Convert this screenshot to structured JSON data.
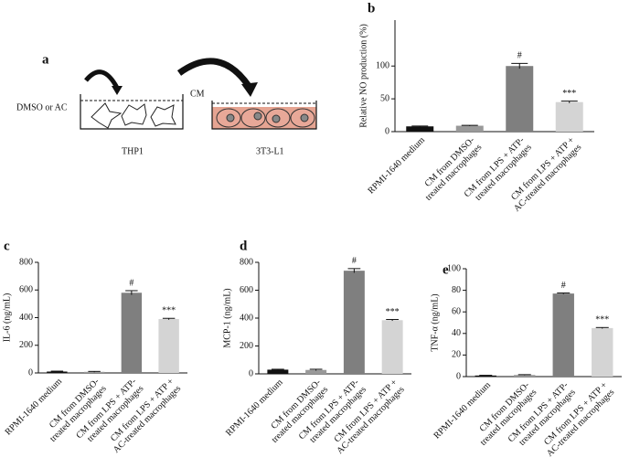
{
  "diagram": {
    "label": "a",
    "treatment": "DMSO or AC",
    "transfer": "CM",
    "source_cells": "THP1",
    "target_cells": "3T3-L1"
  },
  "chart_data": [
    {
      "type": "bar",
      "panel": "b",
      "ylabel": "Relative NO production (%)",
      "categories": [
        [
          "RPMI-1640 medium"
        ],
        [
          "CM from DMSO-",
          "treated macrophages"
        ],
        [
          "CM from LPS + ATP-",
          "treated macrophages"
        ],
        [
          "CM from LPS + ATP +",
          "AC-treated macrophages"
        ]
      ],
      "values": [
        8,
        9,
        100,
        45
      ],
      "errors": [
        0.5,
        0.6,
        4,
        1.5
      ],
      "annotations": [
        null,
        null,
        "#",
        "***"
      ],
      "colors": [
        "#111111",
        "#999999",
        "#7f7f7f",
        "#d4d4d4"
      ],
      "ylim": [
        0,
        170
      ],
      "yticks": [
        0,
        50,
        100
      ]
    },
    {
      "type": "bar",
      "panel": "c",
      "ylabel": "IL-6 (ng/mL)",
      "categories": [
        [
          "RPMI-1640 medium"
        ],
        [
          "CM from DMSO-",
          "treated macrophages"
        ],
        [
          "CM from LPS + ATP-",
          "treated macrophages"
        ],
        [
          "CM from LPS + ATP +",
          "AC-treated macrophages"
        ]
      ],
      "values": [
        10,
        8,
        580,
        390
      ],
      "errors": [
        3,
        3,
        15,
        5
      ],
      "annotations": [
        null,
        null,
        "#",
        "***"
      ],
      "colors": [
        "#111111",
        "#999999",
        "#7f7f7f",
        "#d4d4d4"
      ],
      "ylim": [
        0,
        800
      ],
      "yticks": [
        0,
        200,
        400,
        600,
        800
      ]
    },
    {
      "type": "bar",
      "panel": "d",
      "ylabel": "MCP-1 (ng/mL)",
      "categories": [
        [
          "RPMI-1640 medium"
        ],
        [
          "CM from DMSO-",
          "treated macrophages"
        ],
        [
          "CM from LPS + ATP-",
          "treated macrophages"
        ],
        [
          "CM from LPS + ATP +",
          "AC-treated macrophages"
        ]
      ],
      "values": [
        30,
        28,
        740,
        385
      ],
      "errors": [
        3,
        5,
        15,
        5
      ],
      "annotations": [
        null,
        null,
        "#",
        "***"
      ],
      "colors": [
        "#111111",
        "#999999",
        "#7f7f7f",
        "#d4d4d4"
      ],
      "ylim": [
        0,
        800
      ],
      "yticks": [
        0,
        200,
        400,
        600,
        800
      ]
    },
    {
      "type": "bar",
      "panel": "e",
      "ylabel": "TNF-α (ng/mL)",
      "categories": [
        [
          "RPMI-1640 medium"
        ],
        [
          "CM from DMSO-",
          "treated macrophages"
        ],
        [
          "CM from LPS + ATP-",
          "treated macrophages"
        ],
        [
          "CM from LPS + ATP +",
          "AC-treated macrophages"
        ]
      ],
      "values": [
        1,
        1.5,
        77,
        45
      ],
      "errors": [
        0.2,
        0.3,
        0.5,
        0.5
      ],
      "annotations": [
        null,
        null,
        "#",
        "***"
      ],
      "colors": [
        "#111111",
        "#999999",
        "#7f7f7f",
        "#d4d4d4"
      ],
      "ylim": [
        0,
        100
      ],
      "yticks": [
        0,
        20,
        40,
        60,
        80,
        100
      ]
    }
  ]
}
